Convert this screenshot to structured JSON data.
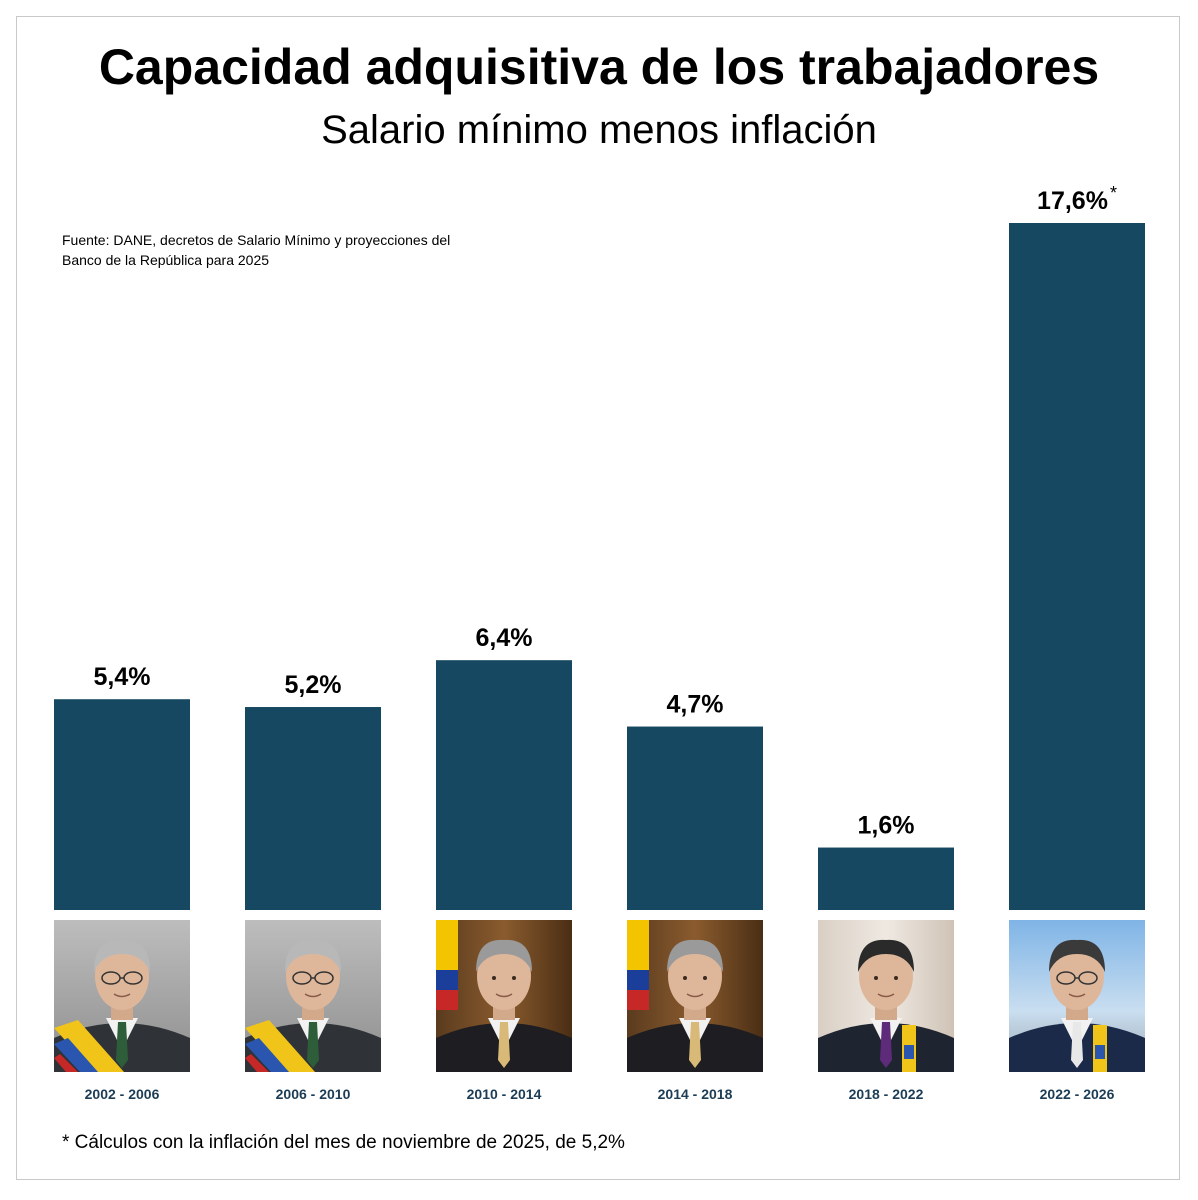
{
  "chart_data": {
    "type": "bar",
    "title": "Capacidad adquisitiva de los trabajadores",
    "subtitle": "Salario mínimo menos inflación",
    "categories": [
      "2002 - 2006",
      "2006 - 2010",
      "2010 - 2014",
      "2014 - 2018",
      "2018 - 2022",
      "2022 - 2026"
    ],
    "values": [
      5.4,
      5.2,
      6.4,
      4.7,
      1.6,
      17.6
    ],
    "value_labels": [
      "5,4%",
      "5,2%",
      "6,4%",
      "4,7%",
      "1,6%",
      "17,6%"
    ],
    "label_markers": [
      "",
      "",
      "",
      "",
      "",
      "*"
    ],
    "ylim": [
      0,
      17.6
    ],
    "grid": false,
    "bar_color": "#164861",
    "source": "Fuente: DANE, decretos de Salario Mínimo y proyecciones del Banco de la República para 2025",
    "footnote": "* Cálculos con la inflación del mes de noviembre de 2025, de 5,2%"
  }
}
